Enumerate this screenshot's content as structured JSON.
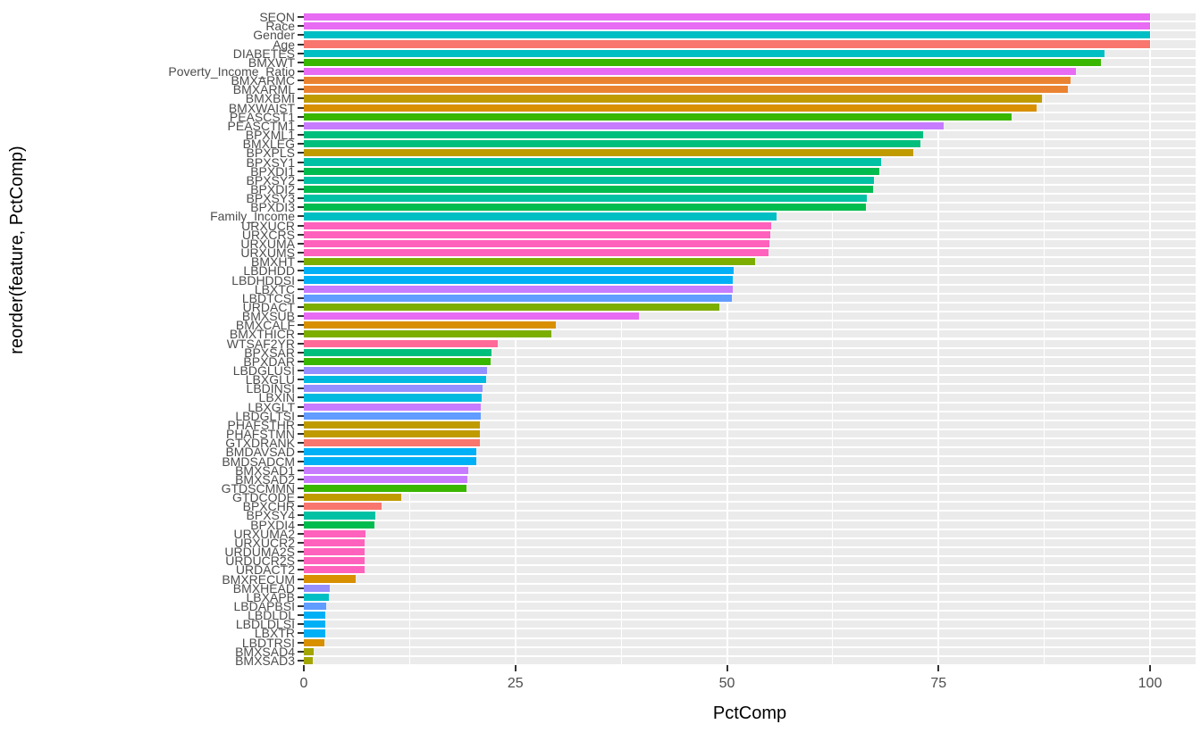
{
  "figure": {
    "background": "#FFFFFF",
    "panel_stripe_color": "#EBEBEB",
    "gridline_color": "#FFFFFF",
    "tick_color": "#333333",
    "tick_label_color": "#4D4D4D"
  },
  "chart_data": {
    "type": "bar",
    "orientation": "horizontal",
    "title": "",
    "xlabel": "PctComp",
    "ylabel": "reorder(feature, PctComp)",
    "xlim": [
      0,
      105
    ],
    "x_ticks": [
      0,
      25,
      50,
      75,
      100
    ],
    "grid": true,
    "legend_position": "none",
    "bars": [
      {
        "feature": "SEQN",
        "value": 100,
        "color": "#E76BF3"
      },
      {
        "feature": "Race",
        "value": 100,
        "color": "#E76BF3"
      },
      {
        "feature": "Gender",
        "value": 100,
        "color": "#00BFC4"
      },
      {
        "feature": "Age",
        "value": 100,
        "color": "#F8766D"
      },
      {
        "feature": "DIABETES",
        "value": 94.6,
        "color": "#00BFC4"
      },
      {
        "feature": "BMXWT",
        "value": 94.2,
        "color": "#39B600"
      },
      {
        "feature": "Poverty_Income_Ratio",
        "value": 91.2,
        "color": "#E76BF3"
      },
      {
        "feature": "BMXARMC",
        "value": 90.6,
        "color": "#EA8331"
      },
      {
        "feature": "BMXARML",
        "value": 90.3,
        "color": "#EA8331"
      },
      {
        "feature": "BMXBMI",
        "value": 87.2,
        "color": "#C09B00"
      },
      {
        "feature": "BMXWAIST",
        "value": 86.6,
        "color": "#D89000"
      },
      {
        "feature": "PEASCST1",
        "value": 83.6,
        "color": "#39B600"
      },
      {
        "feature": "PEASCTM1",
        "value": 75.6,
        "color": "#C77CFF"
      },
      {
        "feature": "BPXML1",
        "value": 73.2,
        "color": "#00BF7D"
      },
      {
        "feature": "BMXLEG",
        "value": 72.9,
        "color": "#00BF7D"
      },
      {
        "feature": "BPXPLS",
        "value": 72.0,
        "color": "#C09B00"
      },
      {
        "feature": "BPXSY1",
        "value": 68.2,
        "color": "#00C1A3"
      },
      {
        "feature": "BPXDI1",
        "value": 68.0,
        "color": "#00BB4E"
      },
      {
        "feature": "BPXSY2",
        "value": 67.4,
        "color": "#00C1A3"
      },
      {
        "feature": "BPXDI2",
        "value": 67.3,
        "color": "#00BB4E"
      },
      {
        "feature": "BPXSY3",
        "value": 66.5,
        "color": "#00C1A3"
      },
      {
        "feature": "BPXDI3",
        "value": 66.4,
        "color": "#00BB4E"
      },
      {
        "feature": "Family_Income",
        "value": 55.9,
        "color": "#00BFC4"
      },
      {
        "feature": "URXUCR",
        "value": 55.2,
        "color": "#FF62BC"
      },
      {
        "feature": "URXCRS",
        "value": 55.1,
        "color": "#FF62BC"
      },
      {
        "feature": "URXUMA",
        "value": 55.0,
        "color": "#FF62BC"
      },
      {
        "feature": "URXUMS",
        "value": 54.9,
        "color": "#FF62BC"
      },
      {
        "feature": "BMXHT",
        "value": 53.3,
        "color": "#7CAE00"
      },
      {
        "feature": "LBDHDD",
        "value": 50.8,
        "color": "#00B0F6"
      },
      {
        "feature": "LBDHDDSI",
        "value": 50.7,
        "color": "#00B0F6"
      },
      {
        "feature": "LBXTC",
        "value": 50.7,
        "color": "#C77CFF"
      },
      {
        "feature": "LBDTCSI",
        "value": 50.6,
        "color": "#619CFF"
      },
      {
        "feature": "URDACT",
        "value": 49.1,
        "color": "#7CAE00"
      },
      {
        "feature": "BMXSUB",
        "value": 39.6,
        "color": "#E76BF3"
      },
      {
        "feature": "BMXCALF",
        "value": 29.8,
        "color": "#D89000"
      },
      {
        "feature": "BMXTHICR",
        "value": 29.3,
        "color": "#7CAE00"
      },
      {
        "feature": "WTSAF2YR",
        "value": 22.9,
        "color": "#FF6A98"
      },
      {
        "feature": "BPXSAR",
        "value": 22.2,
        "color": "#00BF7D"
      },
      {
        "feature": "BPXDAR",
        "value": 22.1,
        "color": "#39B600"
      },
      {
        "feature": "LBDGLUSI",
        "value": 21.6,
        "color": "#9590FF"
      },
      {
        "feature": "LBXGLU",
        "value": 21.5,
        "color": "#00BAE0"
      },
      {
        "feature": "LBDINSI",
        "value": 21.1,
        "color": "#9590FF"
      },
      {
        "feature": "LBXIN",
        "value": 21.0,
        "color": "#00BAE0"
      },
      {
        "feature": "LBXGLT",
        "value": 20.9,
        "color": "#C77CFF"
      },
      {
        "feature": "LBDGLTSI",
        "value": 20.9,
        "color": "#619CFF"
      },
      {
        "feature": "PHAFSTHR",
        "value": 20.8,
        "color": "#C09B00"
      },
      {
        "feature": "PHAFSTMN",
        "value": 20.8,
        "color": "#C09B00"
      },
      {
        "feature": "GTXDRANK",
        "value": 20.8,
        "color": "#F8766D"
      },
      {
        "feature": "BMDAVSAD",
        "value": 20.4,
        "color": "#00B0F6"
      },
      {
        "feature": "BMDSADCM",
        "value": 20.4,
        "color": "#00B0F6"
      },
      {
        "feature": "BMXSAD1",
        "value": 19.4,
        "color": "#C77CFF"
      },
      {
        "feature": "BMXSAD2",
        "value": 19.3,
        "color": "#C77CFF"
      },
      {
        "feature": "GTDSCMMN",
        "value": 19.2,
        "color": "#39B600"
      },
      {
        "feature": "GTDCODE",
        "value": 11.5,
        "color": "#C09B00"
      },
      {
        "feature": "BPXCHR",
        "value": 9.2,
        "color": "#F8766D"
      },
      {
        "feature": "BPXSY4",
        "value": 8.4,
        "color": "#00C1A3"
      },
      {
        "feature": "BPXDI4",
        "value": 8.3,
        "color": "#00BB4E"
      },
      {
        "feature": "URXUMA2",
        "value": 7.3,
        "color": "#FF62BC"
      },
      {
        "feature": "URXUCR2",
        "value": 7.2,
        "color": "#FF62BC"
      },
      {
        "feature": "URDUMA2S",
        "value": 7.2,
        "color": "#FF62BC"
      },
      {
        "feature": "URDUCR2S",
        "value": 7.2,
        "color": "#FF62BC"
      },
      {
        "feature": "URDACT2",
        "value": 7.2,
        "color": "#FF62BC"
      },
      {
        "feature": "BMXRECUM",
        "value": 6.1,
        "color": "#D89000"
      },
      {
        "feature": "BMXHEAD",
        "value": 3.1,
        "color": "#9590FF"
      },
      {
        "feature": "LBXAPB",
        "value": 3.0,
        "color": "#00BFC4"
      },
      {
        "feature": "LBDAPBSI",
        "value": 2.6,
        "color": "#619CFF"
      },
      {
        "feature": "LBDLDL",
        "value": 2.5,
        "color": "#00B0F6"
      },
      {
        "feature": "LBDLDLSI",
        "value": 2.5,
        "color": "#00B0F6"
      },
      {
        "feature": "LBXTR",
        "value": 2.5,
        "color": "#00B0F6"
      },
      {
        "feature": "LBDTRSI",
        "value": 2.4,
        "color": "#D89000"
      },
      {
        "feature": "BMXSAD4",
        "value": 1.2,
        "color": "#A3A500"
      },
      {
        "feature": "BMXSAD3",
        "value": 1.1,
        "color": "#A3A500"
      }
    ]
  }
}
